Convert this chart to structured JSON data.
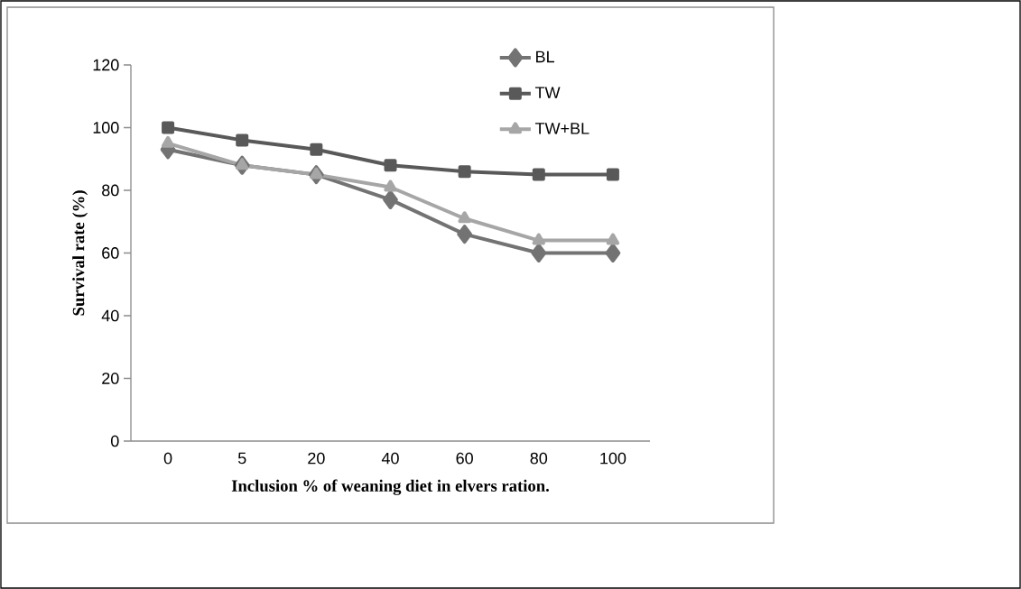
{
  "chart_data": {
    "type": "line",
    "xlabel": "Inclusion % of weaning diet in elvers ration.",
    "ylabel": "Survival rate (%)",
    "categories": [
      "0",
      "5",
      "20",
      "40",
      "60",
      "80",
      "100"
    ],
    "ylim": [
      0,
      120
    ],
    "yticks": [
      0,
      20,
      40,
      60,
      80,
      100,
      120
    ],
    "legend": "top right",
    "grid": false,
    "line_style": "solid",
    "series": [
      {
        "name": "BL",
        "color": "#737373",
        "marker": "diamond",
        "values": [
          93,
          88,
          85,
          77,
          66,
          60,
          60
        ]
      },
      {
        "name": "TW",
        "color": "#595959",
        "marker": "square",
        "values": [
          100,
          96,
          93,
          88,
          86,
          85,
          85
        ]
      },
      {
        "name": "TW+BL",
        "color": "#a6a6a6",
        "marker": "triangle",
        "values": [
          95,
          88,
          85,
          81,
          71,
          64,
          64
        ]
      }
    ]
  }
}
